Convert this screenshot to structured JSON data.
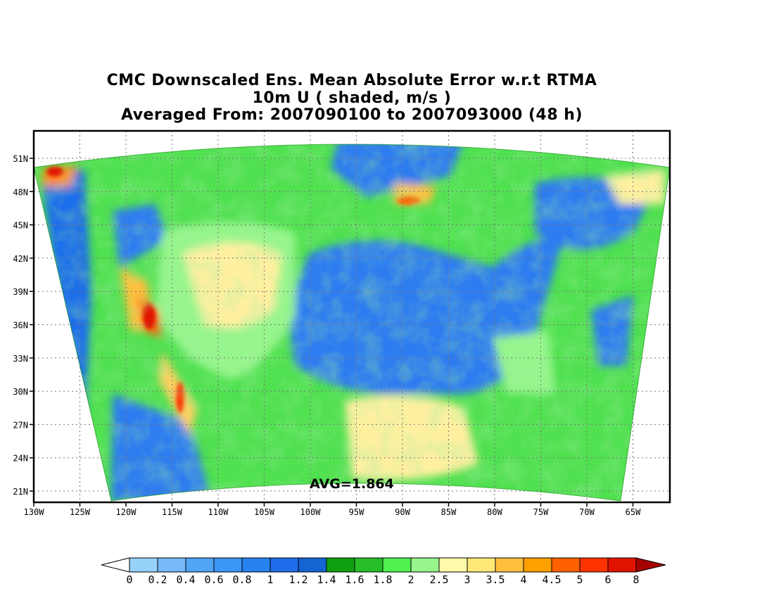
{
  "title": {
    "line1": "CMC Downscaled Ens. Mean Absolute Error w.r.t RTMA",
    "line2": "10m U ( shaded, m/s )",
    "line3": "Averaged From: 2007090100 to 2007093000 (48 h)"
  },
  "map": {
    "avg_label": "AVG=1.864",
    "lat_labels": [
      "51N",
      "48N",
      "45N",
      "42N",
      "39N",
      "36N",
      "33N",
      "30N",
      "27N",
      "24N",
      "21N"
    ],
    "lon_labels": [
      "130W",
      "125W",
      "120W",
      "115W",
      "110W",
      "105W",
      "100W",
      "95W",
      "90W",
      "85W",
      "80W",
      "75W",
      "70W",
      "65W"
    ],
    "grid_lines": "dotted"
  },
  "colorbar": {
    "labels": [
      "0",
      "0.2",
      "0.4",
      "0.6",
      "0.8",
      "1",
      "1.2",
      "1.4",
      "1.6",
      "1.8",
      "2",
      "2.5",
      "3",
      "3.5",
      "4",
      "4.5",
      "5",
      "6",
      "8"
    ],
    "colors": [
      "#96d2fa",
      "#78b9fa",
      "#50a5f5",
      "#3c96f5",
      "#2882f0",
      "#1e6eeb",
      "#1464d2",
      "#0fa00f",
      "#28be28",
      "#50f050",
      "#96f58c",
      "#fffaaa",
      "#ffe878",
      "#ffc03c",
      "#ffa000",
      "#ff6000",
      "#ff3200",
      "#e11400",
      "#c00000"
    ],
    "under_color": "#ffffff",
    "over_color": "#a50000"
  }
}
